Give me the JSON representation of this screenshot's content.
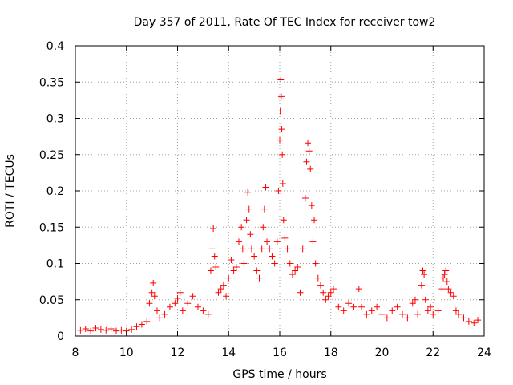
{
  "chart_data": {
    "type": "scatter",
    "title": "Day 357 of 2011, Rate Of TEC Index for receiver tow2",
    "xlabel": "GPS time / hours",
    "ylabel": "ROTI / TECUs",
    "xlim": [
      8,
      24
    ],
    "ylim": [
      0,
      0.4
    ],
    "x_ticks": [
      "8",
      "10",
      "12",
      "14",
      "16",
      "18",
      "20",
      "22",
      "24"
    ],
    "y_ticks": [
      "0",
      "0.05",
      "0.1",
      "0.15",
      "0.2",
      "0.25",
      "0.3",
      "0.35",
      "0.4"
    ],
    "grid": true,
    "marker": "+",
    "series_color": "#ff0000",
    "series": [
      {
        "name": "ROTI",
        "points": [
          [
            8.2,
            0.008
          ],
          [
            8.4,
            0.01
          ],
          [
            8.6,
            0.007
          ],
          [
            8.8,
            0.011
          ],
          [
            9.0,
            0.009
          ],
          [
            9.2,
            0.008
          ],
          [
            9.4,
            0.01
          ],
          [
            9.6,
            0.007
          ],
          [
            9.8,
            0.008
          ],
          [
            10.0,
            0.007
          ],
          [
            10.2,
            0.009
          ],
          [
            10.4,
            0.013
          ],
          [
            10.6,
            0.016
          ],
          [
            10.8,
            0.02
          ],
          [
            10.9,
            0.045
          ],
          [
            11.0,
            0.06
          ],
          [
            11.05,
            0.073
          ],
          [
            11.1,
            0.055
          ],
          [
            11.2,
            0.035
          ],
          [
            11.3,
            0.025
          ],
          [
            11.5,
            0.03
          ],
          [
            11.7,
            0.04
          ],
          [
            11.9,
            0.045
          ],
          [
            12.0,
            0.052
          ],
          [
            12.1,
            0.06
          ],
          [
            12.2,
            0.035
          ],
          [
            12.4,
            0.045
          ],
          [
            12.6,
            0.055
          ],
          [
            12.8,
            0.04
          ],
          [
            13.0,
            0.035
          ],
          [
            13.2,
            0.03
          ],
          [
            13.3,
            0.09
          ],
          [
            13.35,
            0.12
          ],
          [
            13.4,
            0.148
          ],
          [
            13.45,
            0.11
          ],
          [
            13.5,
            0.095
          ],
          [
            13.6,
            0.06
          ],
          [
            13.7,
            0.065
          ],
          [
            13.8,
            0.07
          ],
          [
            13.9,
            0.055
          ],
          [
            14.0,
            0.08
          ],
          [
            14.1,
            0.105
          ],
          [
            14.2,
            0.09
          ],
          [
            14.3,
            0.095
          ],
          [
            14.4,
            0.13
          ],
          [
            14.5,
            0.15
          ],
          [
            14.55,
            0.12
          ],
          [
            14.6,
            0.1
          ],
          [
            14.7,
            0.16
          ],
          [
            14.75,
            0.198
          ],
          [
            14.8,
            0.175
          ],
          [
            14.85,
            0.14
          ],
          [
            14.9,
            0.12
          ],
          [
            15.0,
            0.11
          ],
          [
            15.1,
            0.09
          ],
          [
            15.2,
            0.08
          ],
          [
            15.3,
            0.12
          ],
          [
            15.35,
            0.15
          ],
          [
            15.4,
            0.175
          ],
          [
            15.45,
            0.205
          ],
          [
            15.5,
            0.13
          ],
          [
            15.6,
            0.12
          ],
          [
            15.7,
            0.11
          ],
          [
            15.8,
            0.1
          ],
          [
            15.9,
            0.13
          ],
          [
            15.95,
            0.2
          ],
          [
            16.0,
            0.27
          ],
          [
            16.02,
            0.31
          ],
          [
            16.04,
            0.353
          ],
          [
            16.06,
            0.33
          ],
          [
            16.08,
            0.285
          ],
          [
            16.1,
            0.25
          ],
          [
            16.12,
            0.21
          ],
          [
            16.15,
            0.16
          ],
          [
            16.2,
            0.135
          ],
          [
            16.3,
            0.12
          ],
          [
            16.4,
            0.1
          ],
          [
            16.5,
            0.085
          ],
          [
            16.6,
            0.09
          ],
          [
            16.7,
            0.095
          ],
          [
            16.8,
            0.06
          ],
          [
            16.9,
            0.12
          ],
          [
            17.0,
            0.19
          ],
          [
            17.05,
            0.24
          ],
          [
            17.1,
            0.266
          ],
          [
            17.15,
            0.255
          ],
          [
            17.2,
            0.23
          ],
          [
            17.25,
            0.18
          ],
          [
            17.3,
            0.13
          ],
          [
            17.35,
            0.16
          ],
          [
            17.4,
            0.1
          ],
          [
            17.5,
            0.08
          ],
          [
            17.6,
            0.07
          ],
          [
            17.7,
            0.06
          ],
          [
            17.8,
            0.05
          ],
          [
            17.9,
            0.055
          ],
          [
            18.0,
            0.06
          ],
          [
            18.1,
            0.065
          ],
          [
            18.3,
            0.04
          ],
          [
            18.5,
            0.035
          ],
          [
            18.7,
            0.045
          ],
          [
            18.9,
            0.04
          ],
          [
            19.1,
            0.065
          ],
          [
            19.2,
            0.04
          ],
          [
            19.4,
            0.03
          ],
          [
            19.6,
            0.035
          ],
          [
            19.8,
            0.04
          ],
          [
            20.0,
            0.03
          ],
          [
            20.2,
            0.025
          ],
          [
            20.4,
            0.035
          ],
          [
            20.6,
            0.04
          ],
          [
            20.8,
            0.03
          ],
          [
            21.0,
            0.025
          ],
          [
            21.2,
            0.045
          ],
          [
            21.3,
            0.05
          ],
          [
            21.4,
            0.03
          ],
          [
            21.55,
            0.07
          ],
          [
            21.6,
            0.09
          ],
          [
            21.65,
            0.085
          ],
          [
            21.7,
            0.05
          ],
          [
            21.8,
            0.035
          ],
          [
            21.9,
            0.04
          ],
          [
            22.0,
            0.03
          ],
          [
            22.2,
            0.035
          ],
          [
            22.35,
            0.065
          ],
          [
            22.4,
            0.08
          ],
          [
            22.45,
            0.085
          ],
          [
            22.5,
            0.09
          ],
          [
            22.55,
            0.075
          ],
          [
            22.6,
            0.065
          ],
          [
            22.7,
            0.06
          ],
          [
            22.8,
            0.055
          ],
          [
            22.9,
            0.035
          ],
          [
            23.0,
            0.03
          ],
          [
            23.2,
            0.025
          ],
          [
            23.4,
            0.02
          ],
          [
            23.6,
            0.018
          ],
          [
            23.75,
            0.022
          ]
        ]
      }
    ]
  }
}
